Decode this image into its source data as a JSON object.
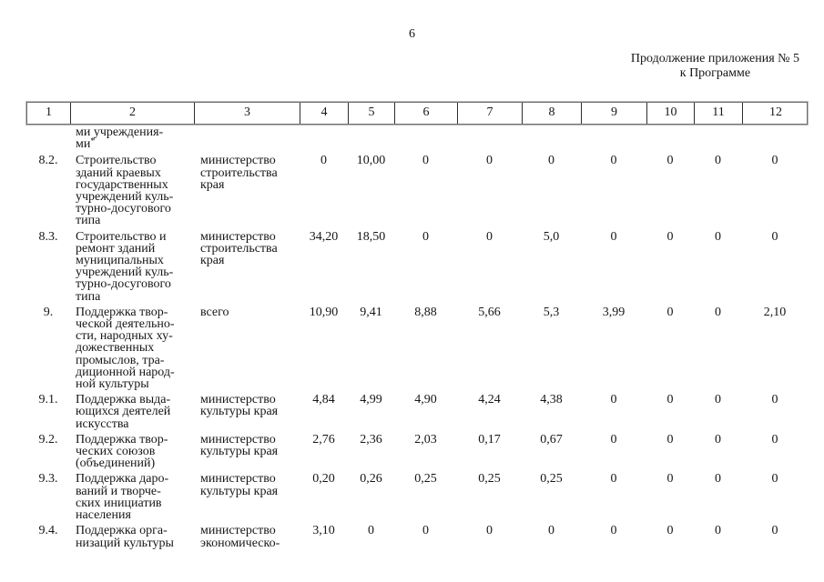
{
  "page": {
    "number": "6",
    "appendix_note_line1": "Продолжение приложения № 5",
    "appendix_note_line2": "к Программе"
  },
  "table": {
    "header_columns": [
      "1",
      "2",
      "3",
      "4",
      "5",
      "6",
      "7",
      "8",
      "9",
      "10",
      "11",
      "12"
    ],
    "continuation": {
      "text": "ми учреждения-\nми",
      "footnote_marker": "*"
    },
    "rows": [
      {
        "num": "8.2.",
        "name": "Строительство\nзданий краевых\nгосударственных\nучреждений куль-\nтурно-досугового\nтипа",
        "executor": "министерство\nстроительства\nкрая",
        "values": [
          "0",
          "10,00",
          "0",
          "0",
          "0",
          "0",
          "0",
          "0",
          "0"
        ]
      },
      {
        "num": "8.3.",
        "name": "Строительство и\nремонт зданий\nмуниципальных\nучреждений куль-\nтурно-досугового\nтипа",
        "executor": "министерство\nстроительства\nкрая",
        "values": [
          "34,20",
          "18,50",
          "0",
          "0",
          "5,0",
          "0",
          "0",
          "0",
          "0"
        ]
      },
      {
        "num": "9.",
        "name": "Поддержка твор-\nческой деятельно-\nсти, народных ху-\nдожественных\nпромыслов, тра-\nдиционной народ-\nной культуры",
        "executor": "всего",
        "values": [
          "10,90",
          "9,41",
          "8,88",
          "5,66",
          "5,3",
          "3,99",
          "0",
          "0",
          "2,10"
        ]
      },
      {
        "num": "9.1.",
        "name": "Поддержка выда-\nющихся деятелей\nискусства",
        "executor": "министерство\nкультуры края",
        "values": [
          "4,84",
          "4,99",
          "4,90",
          "4,24",
          "4,38",
          "0",
          "0",
          "0",
          "0"
        ]
      },
      {
        "num": "9.2.",
        "name": "Поддержка твор-\nческих союзов\n(объединений)",
        "executor": "министерство\nкультуры края",
        "values": [
          "2,76",
          "2,36",
          "2,03",
          "0,17",
          "0,67",
          "0",
          "0",
          "0",
          "0"
        ]
      },
      {
        "num": "9.3.",
        "name": "Поддержка даро-\nваний и творче-\nских инициатив\nнаселения",
        "executor": "министерство\nкультуры края",
        "values": [
          "0,20",
          "0,26",
          "0,25",
          "0,25",
          "0,25",
          "0",
          "0",
          "0",
          "0"
        ]
      },
      {
        "num": "9.4.",
        "name": "Поддержка орга-\nнизаций культуры",
        "executor": "министерство\nэкономическо-",
        "values": [
          "3,10",
          "0",
          "0",
          "0",
          "0",
          "0",
          "0",
          "0",
          "0"
        ]
      }
    ]
  }
}
